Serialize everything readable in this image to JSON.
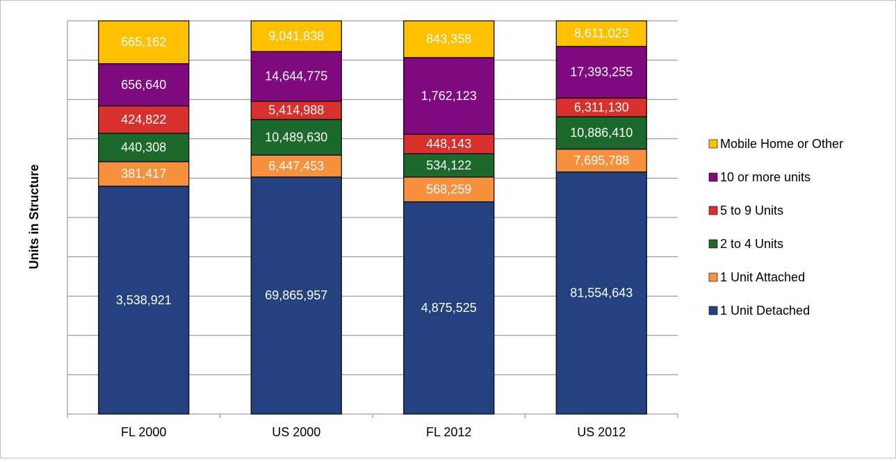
{
  "chart_data": {
    "type": "bar",
    "stacking": "percent",
    "y_axis_label": "Units in Structure",
    "categories": [
      "FL 2000",
      "US 2000",
      "FL 2012",
      "US 2012"
    ],
    "series": [
      {
        "name": "1 Unit Detached",
        "color": "#244280",
        "values": [
          3538921,
          69865957,
          4875525,
          81554643
        ]
      },
      {
        "name": "1 Unit Attached",
        "color": "#f7913d",
        "values": [
          381417,
          6447453,
          568259,
          7695788
        ]
      },
      {
        "name": "2 to 4 Units",
        "color": "#1b6a2b",
        "values": [
          440308,
          10489630,
          534122,
          10886410
        ]
      },
      {
        "name": "5 to 9 Units",
        "color": "#d8302c",
        "values": [
          424822,
          5414988,
          448143,
          6311130
        ]
      },
      {
        "name": "10 or more units",
        "color": "#7f0a80",
        "values": [
          656640,
          14644775,
          1762123,
          17393255
        ]
      },
      {
        "name": "Mobile Home or Other",
        "color": "#ffc000",
        "values": [
          665162,
          9041838,
          843358,
          8611023
        ]
      }
    ],
    "ylim": [
      0,
      100
    ],
    "yticks": [
      0,
      10,
      20,
      30,
      40,
      50,
      60,
      70,
      80,
      90,
      100
    ],
    "grid": true,
    "legend": "right"
  }
}
